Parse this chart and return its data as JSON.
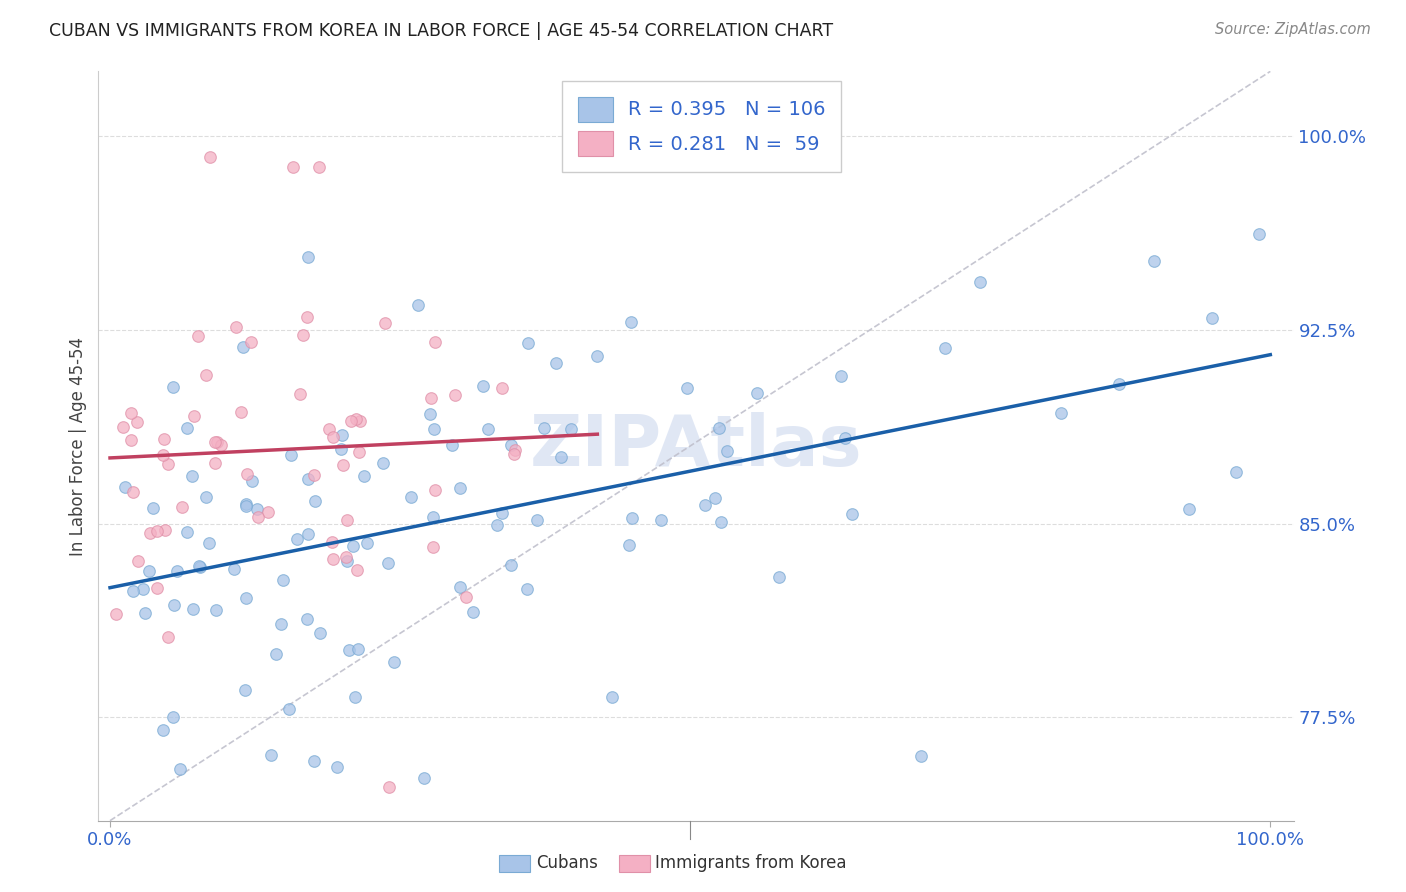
{
  "title": "CUBAN VS IMMIGRANTS FROM KOREA IN LABOR FORCE | AGE 45-54 CORRELATION CHART",
  "source": "Source: ZipAtlas.com",
  "ylabel": "In Labor Force | Age 45-54",
  "R_cubans": 0.395,
  "N_cubans": 106,
  "R_korea": 0.281,
  "N_korea": 59,
  "cubans_color": "#a8c4e8",
  "cubans_edge_color": "#7aaad4",
  "korea_color": "#f4b0c4",
  "korea_edge_color": "#e090a8",
  "line_cubans_color": "#1a5fa8",
  "line_korea_color": "#c04060",
  "diagonal_color": "#c0c0cc",
  "title_color": "#222222",
  "source_color": "#888888",
  "axis_label_color": "#444444",
  "tick_color": "#3366cc",
  "legend_R_color": "#3366cc",
  "background_color": "#ffffff",
  "grid_color": "#dddddd",
  "watermark_color": "#ccd8ee",
  "xlim_min": -0.01,
  "xlim_max": 1.02,
  "ylim_min": 0.735,
  "ylim_max": 1.025,
  "yticks": [
    0.775,
    0.85,
    0.925,
    1.0
  ],
  "ytick_labels": [
    "77.5%",
    "85.0%",
    "92.5%",
    "100.0%"
  ],
  "xticks": [
    0.0,
    1.0
  ],
  "xtick_labels": [
    "0.0%",
    "100.0%"
  ]
}
